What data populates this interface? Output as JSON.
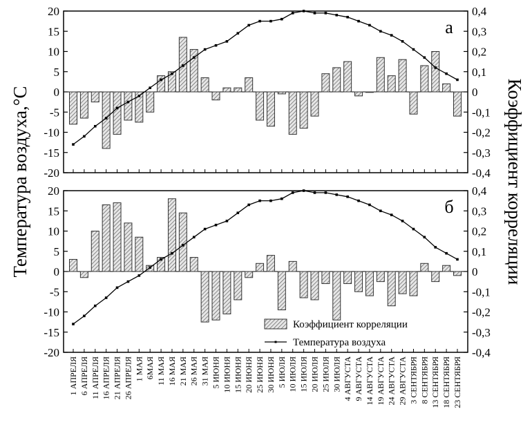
{
  "chart_data": [
    {
      "type": "bar",
      "panel_label": "а",
      "ylabel_left": "Температура воздуха,°С",
      "ylabel_right": "Коэффициент корреляции",
      "ylim_left": [
        -20,
        20
      ],
      "ylim_right": [
        -0.4,
        0.4
      ],
      "left_ticks": [
        "20",
        "15",
        "10",
        "5",
        "0",
        "-5",
        "-10",
        "-15",
        "-20"
      ],
      "right_ticks": [
        "0,4",
        "0,3",
        "0,2",
        "0,1",
        "0",
        "-0,1",
        "-0,2",
        "-0,3",
        "-0,4"
      ],
      "grid": false,
      "series": [
        {
          "name": "Коэффициент корреляции",
          "kind": "bar",
          "axis": "right",
          "values": [
            -0.16,
            -0.13,
            -0.05,
            -0.28,
            -0.21,
            -0.14,
            -0.15,
            -0.1,
            0.08,
            0.1,
            0.27,
            0.21,
            0.07,
            -0.04,
            0.02,
            0.02,
            0.07,
            -0.14,
            -0.17,
            -0.01,
            -0.21,
            -0.18,
            -0.12,
            0.09,
            0.12,
            0.15,
            -0.02,
            0.0,
            0.17,
            0.08,
            0.16,
            -0.11,
            0.13,
            0.2,
            0.04,
            -0.12
          ]
        },
        {
          "name": "Температура воздуха",
          "kind": "line",
          "axis": "left",
          "values": [
            -13.0,
            -11.0,
            -8.5,
            -6.5,
            -4.0,
            -2.5,
            -1.0,
            1.0,
            3.0,
            4.5,
            6.5,
            8.5,
            10.5,
            11.5,
            12.5,
            14.5,
            16.5,
            17.5,
            17.5,
            18.0,
            19.5,
            20.0,
            19.5,
            19.5,
            19.0,
            18.5,
            17.5,
            16.5,
            15.0,
            14.0,
            12.5,
            10.5,
            8.5,
            6.0,
            4.5,
            3.0
          ]
        }
      ]
    },
    {
      "type": "bar",
      "panel_label": "б",
      "ylim_left": [
        -20,
        20
      ],
      "ylim_right": [
        -0.4,
        0.4
      ],
      "left_ticks": [
        "20",
        "15",
        "10",
        "5",
        "0",
        "-5",
        "-10",
        "-15",
        "-20"
      ],
      "right_ticks": [
        "0,4",
        "0,3",
        "0,2",
        "0,1",
        "0",
        "-0,1",
        "-0,2",
        "-0,3",
        "-0,4"
      ],
      "grid": false,
      "legend_position": "bottom-right",
      "legend": [
        {
          "label": "Коэффициент корреляции",
          "kind": "bar"
        },
        {
          "label": "Температура воздуха",
          "kind": "line"
        }
      ],
      "categories": [
        "1 АПРЕЛЯ",
        "6 АПРЕЛЯ",
        "11 АПРЕЛЯ",
        "16 АПРЕЛЯ",
        "21 АПРЕЛЯ",
        "26 АПРЕЛЯ",
        "1 МАЯ",
        "6МАЯ",
        "11 МАЯ",
        "16 МАЯ",
        "21 МАЯ",
        "26 МАЯ",
        "31 МАЯ",
        "5 ИЮНЯ",
        "10 ИЮНЯ",
        "15 ИЮНЯ",
        "20 ИЮНЯ",
        "25 ИЮНЯ",
        "30 ИЮНЯ",
        "5 ИЮЛЯ",
        "10 ИЮЛЯ",
        "15 ИЮЛЯ",
        "20 ИЮЛЯ",
        "25 ИЮЛЯ",
        "30 ИЮЛЯ",
        "4 АВГУСТА",
        "9 АВГУСТА",
        "14 АВГУСТА",
        "19 АВГУСТА",
        "24 АВГУСТА",
        "29 АВГУСТА",
        "3 СЕНТЯБРЯ",
        "8 СЕНТЯБРЯ",
        "13 СЕНТЯБРЯ",
        "18 СЕНТЯБРЯ",
        "23 СЕНТЯБРЯ"
      ],
      "series": [
        {
          "name": "Коэффициент корреляции",
          "kind": "bar",
          "axis": "right",
          "values": [
            0.06,
            -0.03,
            0.2,
            0.33,
            0.34,
            0.24,
            0.17,
            0.03,
            0.07,
            0.36,
            0.29,
            0.07,
            -0.25,
            -0.24,
            -0.21,
            -0.14,
            -0.03,
            0.04,
            0.08,
            -0.19,
            0.05,
            -0.13,
            -0.14,
            -0.06,
            -0.24,
            -0.06,
            -0.1,
            -0.12,
            -0.05,
            -0.17,
            -0.11,
            -0.12,
            0.04,
            -0.05,
            0.03,
            -0.02
          ]
        },
        {
          "name": "Температура воздуха",
          "kind": "line",
          "axis": "left",
          "values": [
            -13.0,
            -11.0,
            -8.5,
            -6.5,
            -4.0,
            -2.5,
            -1.0,
            1.0,
            3.0,
            4.5,
            6.5,
            8.5,
            10.5,
            11.5,
            12.5,
            14.5,
            16.5,
            17.5,
            17.5,
            18.0,
            19.5,
            20.0,
            19.5,
            19.5,
            19.0,
            18.5,
            17.5,
            16.5,
            15.0,
            14.0,
            12.5,
            10.5,
            8.5,
            6.0,
            4.5,
            3.0
          ]
        }
      ]
    }
  ]
}
